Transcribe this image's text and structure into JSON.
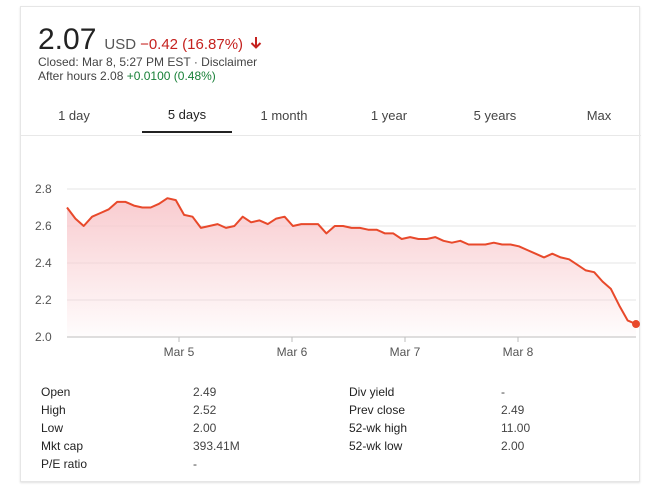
{
  "quote": {
    "price": "2.07",
    "currency": "USD",
    "change": "−0.42 (16.87%)",
    "closed": "Closed: Mar 8, 5:27 PM EST · Disclaimer",
    "after_hours_prefix": "After hours 2.08",
    "after_hours_change": "+0.0100 (0.48%)"
  },
  "tabs": [
    {
      "label": "1 day",
      "active": false
    },
    {
      "label": "5 days",
      "active": true
    },
    {
      "label": "1 month",
      "active": false
    },
    {
      "label": "1 year",
      "active": false
    },
    {
      "label": "5 years",
      "active": false
    },
    {
      "label": "Max",
      "active": false
    }
  ],
  "colors": {
    "line": "#e8492b",
    "fill_top": "#f8c9cd",
    "negative": "#c5221f",
    "positive": "#188038"
  },
  "chart_data": {
    "type": "area",
    "x_tick_labels": [
      "Mar 5",
      "Mar 6",
      "Mar 7",
      "Mar 8"
    ],
    "y_ticks": [
      "2.8",
      "2.6",
      "2.4",
      "2.2",
      "2.0"
    ],
    "ylim": [
      2.0,
      2.8
    ],
    "grid": true,
    "series": [
      {
        "values": [
          2.7,
          2.64,
          2.6,
          2.65,
          2.67,
          2.69,
          2.73,
          2.73,
          2.71,
          2.7,
          2.7,
          2.72,
          2.75,
          2.74,
          2.66,
          2.65,
          2.59,
          2.6,
          2.61,
          2.59,
          2.6,
          2.65,
          2.62,
          2.63,
          2.61,
          2.64,
          2.65,
          2.6,
          2.61,
          2.61,
          2.61,
          2.56,
          2.6,
          2.6,
          2.59,
          2.59,
          2.58,
          2.58,
          2.56,
          2.56,
          2.53,
          2.54,
          2.53,
          2.53,
          2.54,
          2.52,
          2.51,
          2.52,
          2.5,
          2.5,
          2.5,
          2.51,
          2.5,
          2.5,
          2.49,
          2.47,
          2.45,
          2.43,
          2.45,
          2.43,
          2.42,
          2.39,
          2.36,
          2.35,
          2.3,
          2.26,
          2.17,
          2.09,
          2.07
        ]
      }
    ]
  },
  "stats": [
    {
      "label": "Open",
      "value": "2.49"
    },
    {
      "label": "High",
      "value": "2.52"
    },
    {
      "label": "Low",
      "value": "2.00"
    },
    {
      "label": "Mkt cap",
      "value": "393.41M"
    },
    {
      "label": "P/E ratio",
      "value": "-"
    },
    {
      "label": "Div yield",
      "value": "-"
    },
    {
      "label": "Prev close",
      "value": "2.49"
    },
    {
      "label": "52-wk high",
      "value": "11.00"
    },
    {
      "label": "52-wk low",
      "value": "2.00"
    }
  ]
}
